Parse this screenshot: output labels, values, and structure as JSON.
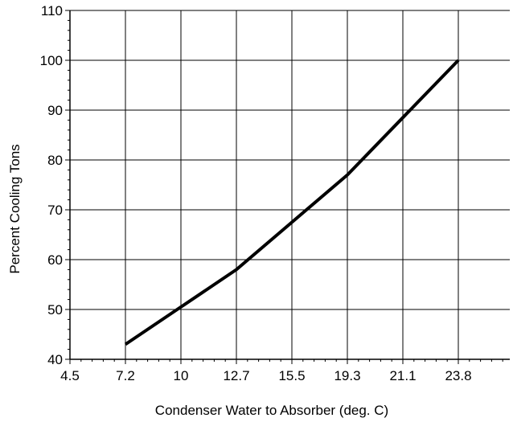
{
  "chart_data": {
    "type": "line",
    "title": "",
    "xlabel": "Condenser Water to Absorber (deg. C)",
    "ylabel": "Percent Cooling Tons",
    "x_ticks": [
      "4.5",
      "7.2",
      "10",
      "12.7",
      "15.5",
      "19.3",
      "21.1",
      "23.8"
    ],
    "y_ticks": [
      40,
      50,
      60,
      70,
      80,
      90,
      100,
      110
    ],
    "ylim": [
      40,
      110
    ],
    "grid": true,
    "series": [
      {
        "x": [
          "7.2",
          "10",
          "12.7",
          "15.5",
          "19.3",
          "21.1",
          "23.8"
        ],
        "values": [
          43,
          50.5,
          58,
          67.5,
          77,
          88.5,
          100
        ]
      }
    ],
    "colors": {
      "line": "#000000",
      "grid": "#000000"
    }
  }
}
